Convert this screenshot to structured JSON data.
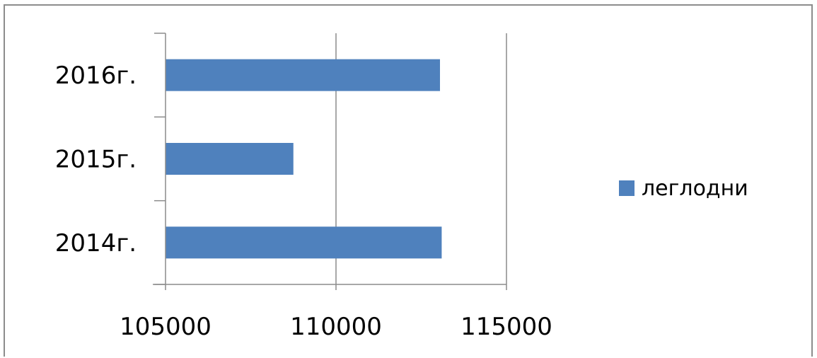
{
  "chart_data": {
    "type": "bar",
    "orientation": "horizontal",
    "categories": [
      "2016г.",
      "2015г.",
      "2014г."
    ],
    "series": [
      {
        "name": "леглодни",
        "values": [
          113050,
          108750,
          113100
        ],
        "color": "#4f81bd"
      }
    ],
    "xlim": [
      105000,
      115000
    ],
    "xticks": [
      105000,
      110000,
      115000
    ],
    "xtick_labels": [
      "105000",
      "110000",
      "115000"
    ],
    "grid": "vertical",
    "legend_position": "right"
  }
}
